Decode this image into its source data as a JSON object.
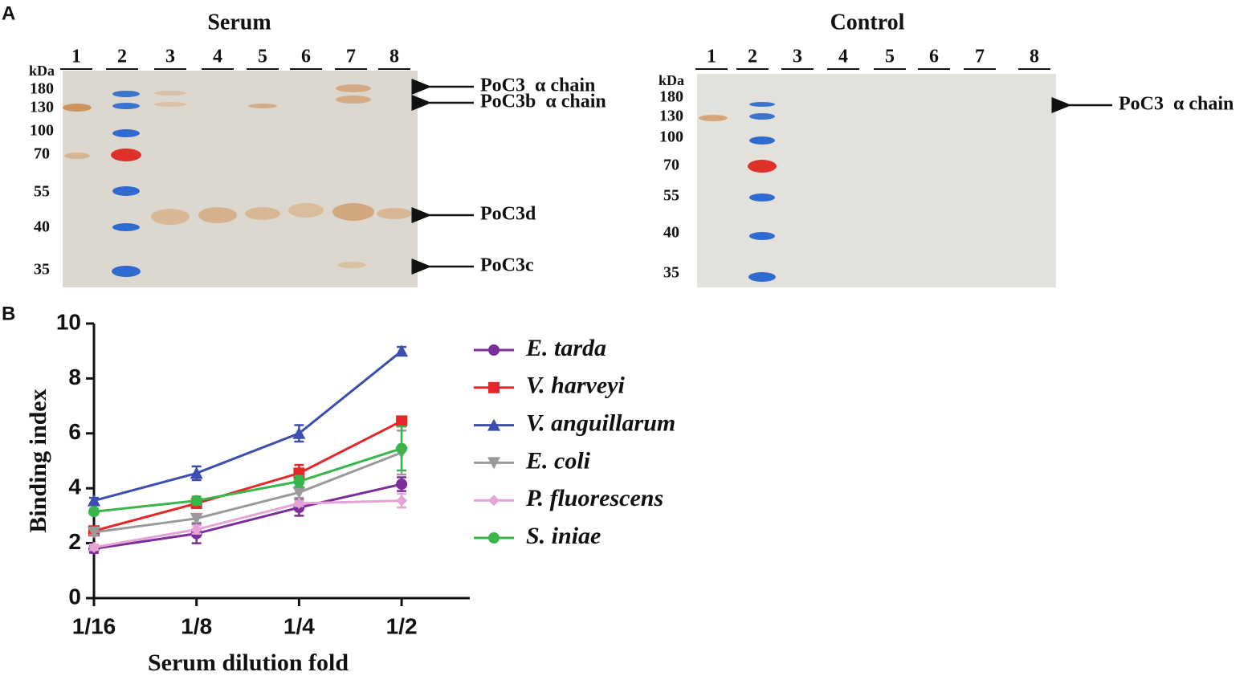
{
  "panel_labels": [
    "A",
    "B"
  ],
  "gel_serum": {
    "title": "Serum",
    "unit": "kDa",
    "markers": [
      "180",
      "130",
      "100",
      "70",
      "55",
      "40",
      "35"
    ],
    "lanes": [
      "1",
      "2",
      "3",
      "4",
      "5",
      "6",
      "7",
      "8"
    ],
    "annotations": [
      "PoC3  α chain",
      "PoC3b  α chain",
      "PoC3d",
      "PoC3c"
    ]
  },
  "gel_control": {
    "title": "Control",
    "unit": "kDa",
    "markers": [
      "180",
      "130",
      "100",
      "70",
      "55",
      "40",
      "35"
    ],
    "lanes": [
      "1",
      "2",
      "3",
      "4",
      "5",
      "6",
      "7",
      "8"
    ],
    "annotations": [
      "PoC3  α chain"
    ]
  },
  "chart_data": {
    "type": "line",
    "x_label": "Serum dilution fold",
    "y_label": "Binding index",
    "categories": [
      "1/16",
      "1/8",
      "1/4",
      "1/2"
    ],
    "ylim": [
      0,
      10
    ],
    "yticks": [
      0,
      2,
      4,
      6,
      8,
      10
    ],
    "series": [
      {
        "name": "E. tarda",
        "color": "#7b2d9a",
        "marker": "circle",
        "values": [
          1.8,
          2.35,
          3.3,
          4.15
        ],
        "errors": [
          0.15,
          0.35,
          0.3,
          0.25
        ]
      },
      {
        "name": "V. harveyi",
        "color": "#e8262a",
        "marker": "square",
        "values": [
          2.45,
          3.45,
          4.55,
          6.45
        ],
        "errors": [
          0.1,
          0.15,
          0.3,
          0.1
        ]
      },
      {
        "name": "V. anguillarum",
        "color": "#3b4fb0",
        "marker": "triangle",
        "values": [
          3.55,
          4.55,
          6.0,
          9.0
        ],
        "errors": [
          0.1,
          0.25,
          0.3,
          0.15
        ]
      },
      {
        "name": "E. coli",
        "color": "#9a9a9a",
        "marker": "triangle-down",
        "values": [
          2.4,
          2.9,
          3.85,
          5.3
        ],
        "errors": [
          0.1,
          0.15,
          0.2,
          0.8
        ]
      },
      {
        "name": "P. fluorescens",
        "color": "#e5a3d6",
        "marker": "diamond",
        "values": [
          1.85,
          2.5,
          3.45,
          3.55
        ],
        "errors": [
          0.1,
          0.15,
          0.1,
          0.25
        ]
      },
      {
        "name": "S. iniae",
        "color": "#3ab54a",
        "marker": "circle",
        "values": [
          3.15,
          3.55,
          4.25,
          5.45
        ],
        "errors": [
          0.1,
          0.15,
          0.2,
          0.8
        ]
      }
    ]
  }
}
